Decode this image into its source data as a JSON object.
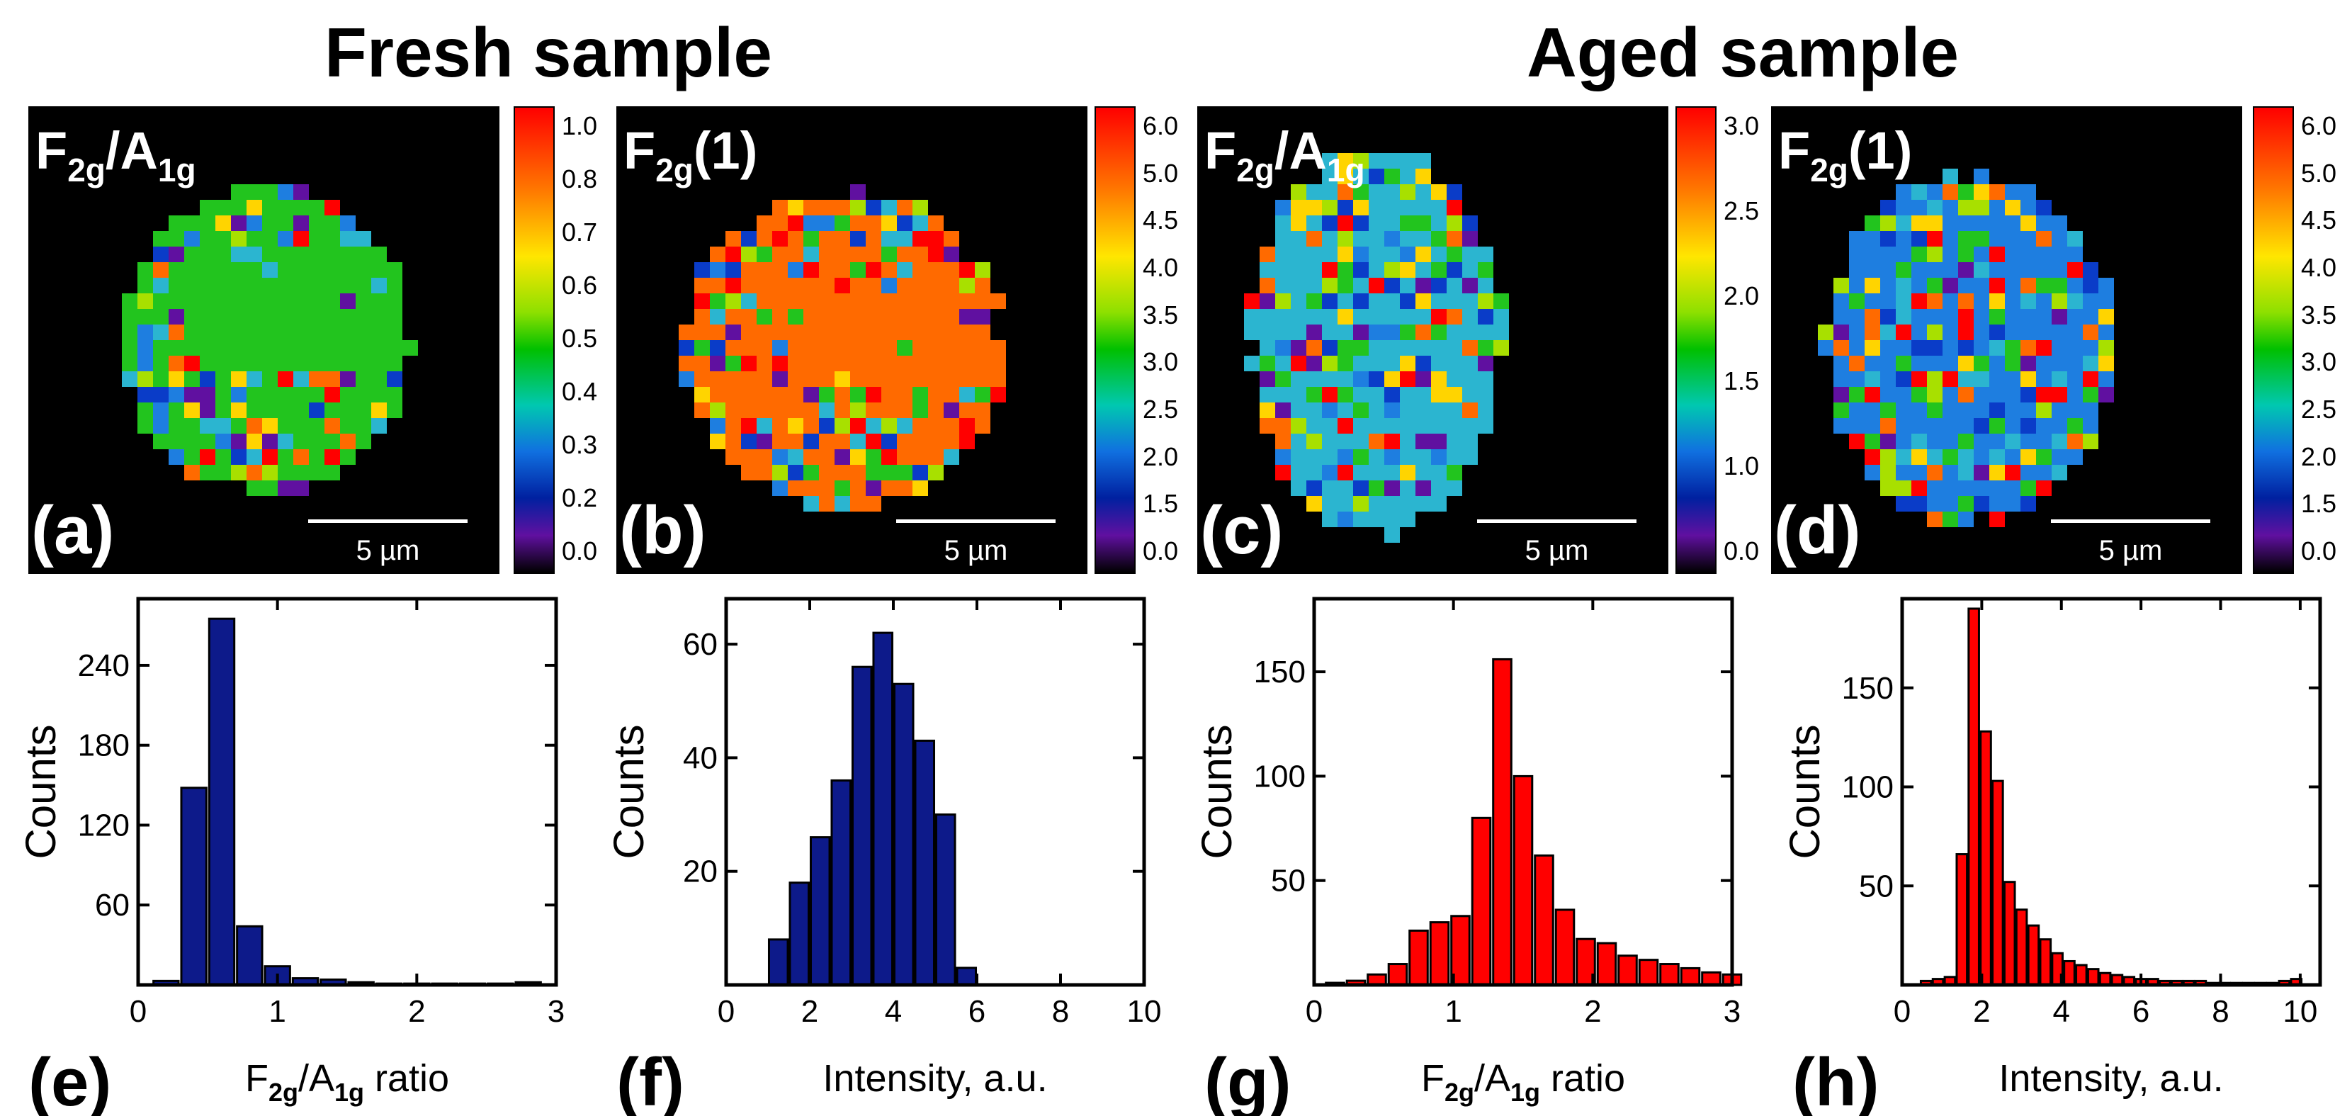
{
  "titles": {
    "fresh": "Fresh sample",
    "aged": "Aged sample"
  },
  "maps": [
    {
      "id": "a",
      "letter": "(a)",
      "label_main": "F",
      "label_sub1": "2g",
      "label_mid": "/A",
      "label_sub2": "1g",
      "label_tail": "",
      "scalebar": "5 µm",
      "colorbar_ticks": [
        "1.0",
        "0.8",
        "0.7",
        "0.6",
        "0.5",
        "0.4",
        "0.3",
        "0.2",
        "0.0"
      ],
      "dominant": "#22c41e"
    },
    {
      "id": "b",
      "letter": "(b)",
      "label_main": "F",
      "label_sub1": "2g",
      "label_mid": "(1)",
      "label_sub2": "",
      "label_tail": "",
      "scalebar": "5 µm",
      "colorbar_ticks": [
        "6.0",
        "5.0",
        "4.5",
        "4.0",
        "3.5",
        "3.0",
        "2.5",
        "2.0",
        "1.5",
        "0.0"
      ],
      "dominant": "#ff6a00"
    },
    {
      "id": "c",
      "letter": "(c)",
      "label_main": "F",
      "label_sub1": "2g",
      "label_mid": "/A",
      "label_sub2": "1g",
      "label_tail": "",
      "scalebar": "5 µm",
      "colorbar_ticks": [
        "3.0",
        "2.5",
        "2.0",
        "1.5",
        "1.0",
        "0.0"
      ],
      "dominant": "#2bb5d0"
    },
    {
      "id": "d",
      "letter": "(d)",
      "label_main": "F",
      "label_sub1": "2g",
      "label_mid": "(1)",
      "label_sub2": "",
      "label_tail": "",
      "scalebar": "5 µm",
      "colorbar_ticks": [
        "6.0",
        "5.0",
        "4.5",
        "4.0",
        "3.5",
        "3.0",
        "2.5",
        "2.0",
        "1.5",
        "0.0"
      ],
      "dominant": "#1e7ee0"
    }
  ],
  "chart_data": [
    {
      "type": "bar",
      "panel": "(e)",
      "xlabel_main": "F",
      "xlabel_sub1": "2g",
      "xlabel_mid": "/A",
      "xlabel_sub2": "1g",
      "xlabel_tail": " ratio",
      "ylabel": "Counts",
      "xlim": [
        0,
        3
      ],
      "ylim": [
        0,
        290
      ],
      "xticks": [
        "0",
        "1",
        "2",
        "3"
      ],
      "yticks": [
        60,
        120,
        180,
        240
      ],
      "bar_width": 0.18,
      "color": "#0d1a8a",
      "x": [
        0.2,
        0.4,
        0.6,
        0.8,
        1.0,
        1.2,
        1.4,
        1.6,
        1.8,
        2.0,
        2.2,
        2.4,
        2.6,
        2.8
      ],
      "values": [
        3,
        148,
        275,
        44,
        14,
        5,
        4,
        2,
        1,
        1,
        1,
        1,
        1,
        2
      ]
    },
    {
      "type": "bar",
      "panel": "(f)",
      "xlabel_main": "Intensity, a.u.",
      "xlabel_sub1": "",
      "xlabel_mid": "",
      "xlabel_sub2": "",
      "xlabel_tail": "",
      "ylabel": "Counts",
      "xlim": [
        0,
        10
      ],
      "ylim": [
        0,
        68
      ],
      "xticks": [
        "0",
        "2",
        "4",
        "6",
        "8",
        "10"
      ],
      "yticks": [
        20,
        40,
        60
      ],
      "bar_width": 0.45,
      "color": "#0d1a8a",
      "x": [
        1.25,
        1.75,
        2.25,
        2.75,
        3.25,
        3.75,
        4.25,
        4.75,
        5.25,
        5.75
      ],
      "values": [
        8,
        18,
        26,
        36,
        56,
        62,
        53,
        43,
        30,
        3
      ]
    },
    {
      "type": "bar",
      "panel": "(g)",
      "xlabel_main": "F",
      "xlabel_sub1": "2g",
      "xlabel_mid": "/A",
      "xlabel_sub2": "1g",
      "xlabel_tail": " ratio",
      "ylabel": "Counts",
      "xlim": [
        0,
        3
      ],
      "ylim": [
        0,
        185
      ],
      "xticks": [
        "0",
        "1",
        "2",
        "3"
      ],
      "yticks": [
        50,
        100,
        150
      ],
      "bar_width": 0.13,
      "color": "#ff0000",
      "x": [
        0.15,
        0.3,
        0.45,
        0.6,
        0.75,
        0.9,
        1.05,
        1.2,
        1.35,
        1.5,
        1.65,
        1.8,
        1.95,
        2.1,
        2.25,
        2.4,
        2.55,
        2.7,
        2.85,
        3.0
      ],
      "values": [
        1,
        2,
        5,
        10,
        26,
        30,
        33,
        80,
        156,
        100,
        62,
        36,
        22,
        20,
        14,
        12,
        10,
        8,
        6,
        5
      ]
    },
    {
      "type": "bar",
      "panel": "(h)",
      "xlabel_main": "Intensity, a.u.",
      "xlabel_sub1": "",
      "xlabel_mid": "",
      "xlabel_sub2": "",
      "xlabel_tail": "",
      "ylabel": "Counts",
      "xlim": [
        0,
        10.5
      ],
      "ylim": [
        0,
        195
      ],
      "xticks": [
        "0",
        "2",
        "4",
        "6",
        "8",
        "10"
      ],
      "yticks": [
        50,
        100,
        150
      ],
      "bar_width": 0.26,
      "color": "#ff0000",
      "x": [
        0.6,
        0.9,
        1.2,
        1.5,
        1.8,
        2.1,
        2.4,
        2.7,
        3.0,
        3.3,
        3.6,
        3.9,
        4.2,
        4.5,
        4.8,
        5.1,
        5.4,
        5.7,
        6.0,
        6.3,
        6.6,
        6.9,
        7.2,
        7.5,
        7.8,
        8.1,
        8.4,
        8.7,
        9.0,
        9.3,
        9.6,
        9.9
      ],
      "values": [
        2,
        3,
        4,
        66,
        190,
        128,
        103,
        52,
        38,
        30,
        23,
        16,
        12,
        10,
        8,
        6,
        5,
        4,
        3,
        3,
        2,
        2,
        2,
        2,
        1,
        1,
        1,
        1,
        1,
        1,
        2,
        3
      ]
    }
  ]
}
